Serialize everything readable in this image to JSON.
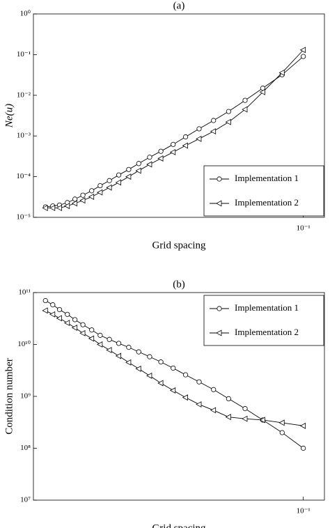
{
  "chart_data": [
    {
      "type": "line",
      "title": "(a)",
      "xlabel": "Grid spacing",
      "ylabel": "Ne(u)",
      "xscale": "log",
      "yscale": "log",
      "legend": "lower right",
      "x": [
        0.03125,
        0.0323,
        0.0333,
        0.0345,
        0.0357,
        0.037,
        0.0385,
        0.04,
        0.0417,
        0.0435,
        0.0455,
        0.0476,
        0.05,
        0.0526,
        0.0556,
        0.0588,
        0.0625,
        0.0667,
        0.0714,
        0.0769,
        0.0833,
        0.0909,
        0.1
      ],
      "series": [
        {
          "name": "Implementation 1",
          "marker": "circle",
          "color": "#000000",
          "values": [
            1.8e-05,
            1.9e-05,
            2e-05,
            2.3e-05,
            2.8e-05,
            3.5e-05,
            4.5e-05,
            6e-05,
            8e-05,
            0.00011,
            0.00015,
            0.00021,
            0.0003,
            0.00042,
            0.00062,
            0.00095,
            0.0015,
            0.0024,
            0.004,
            0.0075,
            0.015,
            0.032,
            0.09
          ]
        },
        {
          "name": "Implementation 2",
          "marker": "triangle-left",
          "color": "#000000",
          "values": [
            1.7e-05,
            1.7e-05,
            1.7e-05,
            1.9e-05,
            2.2e-05,
            2.6e-05,
            3.2e-05,
            4.1e-05,
            5.4e-05,
            7.2e-05,
            0.0001,
            0.00014,
            0.0002,
            0.00028,
            0.0004,
            0.00058,
            0.00085,
            0.0013,
            0.0022,
            0.0045,
            0.012,
            0.036,
            0.13
          ]
        }
      ],
      "xlim": [
        0.0296,
        0.11
      ],
      "ylim": [
        1e-05,
        1
      ],
      "xticks": [
        {
          "value": 0.1,
          "label": "10⁻¹"
        }
      ],
      "yticks": [
        {
          "value": 1e-05,
          "label": "10⁻⁵"
        },
        {
          "value": 0.0001,
          "label": "10⁻⁴"
        },
        {
          "value": 0.001,
          "label": "10⁻³"
        },
        {
          "value": 0.01,
          "label": "10⁻²"
        },
        {
          "value": 0.1,
          "label": "10⁻¹"
        },
        {
          "value": 1,
          "label": "10⁰"
        }
      ]
    },
    {
      "type": "line",
      "title": "(b)",
      "xlabel": "Grid spacing",
      "ylabel": "Condition number",
      "xscale": "log",
      "yscale": "log",
      "legend": "upper right",
      "x": [
        0.03125,
        0.0323,
        0.0333,
        0.0345,
        0.0357,
        0.037,
        0.0385,
        0.04,
        0.0417,
        0.0435,
        0.0455,
        0.0476,
        0.05,
        0.0526,
        0.0556,
        0.0588,
        0.0625,
        0.0667,
        0.0714,
        0.0769,
        0.0833,
        0.0909,
        0.1
      ],
      "series": [
        {
          "name": "Implementation 1",
          "marker": "circle",
          "color": "#000000",
          "values": [
            70000000000,
            58000000000,
            47000000000,
            38000000000,
            30000000000,
            24000000000,
            19000000000,
            15000000000,
            12500000000,
            10500000000,
            8800000000,
            7200000000,
            5800000000,
            4600000000,
            3500000000,
            2600000000,
            1900000000,
            1350000000,
            900000000,
            580000000,
            350000000,
            200000000,
            100000000
          ]
        },
        {
          "name": "Implementation 2",
          "marker": "triangle-left",
          "color": "#000000",
          "values": [
            45000000000,
            38000000000,
            32000000000,
            26000000000,
            21000000000,
            16500000000,
            13000000000,
            10000000000,
            7800000000,
            6000000000,
            4500000000,
            3400000000,
            2500000000,
            1800000000,
            1300000000,
            950000000,
            700000000,
            540000000,
            400000000,
            370000000,
            350000000,
            310000000,
            270000000
          ]
        }
      ],
      "xlim": [
        0.0296,
        0.11
      ],
      "ylim": [
        10000000,
        100000000000
      ],
      "xticks": [
        {
          "value": 0.1,
          "label": "10⁻¹"
        }
      ],
      "yticks": [
        {
          "value": 10000000,
          "label": "10⁷"
        },
        {
          "value": 100000000,
          "label": "10⁸"
        },
        {
          "value": 1000000000,
          "label": "10⁹"
        },
        {
          "value": 10000000000,
          "label": "10¹⁰"
        },
        {
          "value": 100000000000,
          "label": "10¹¹"
        }
      ]
    }
  ]
}
